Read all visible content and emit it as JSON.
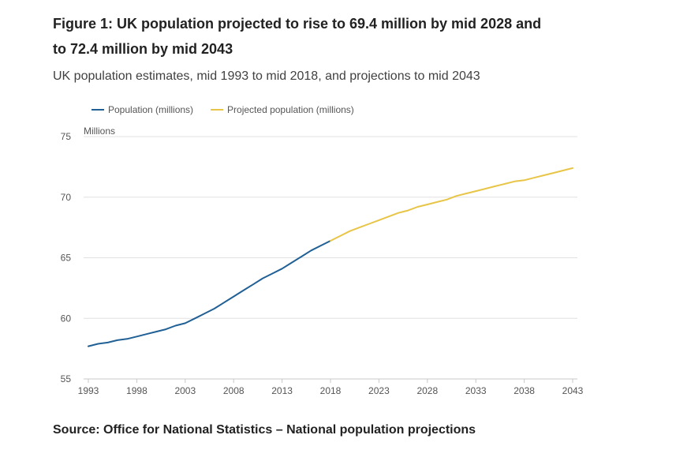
{
  "colors": {
    "population": "#206095",
    "projected": "#E8C547",
    "grid": "#e0e0e0",
    "axis": "#c8c8c8"
  },
  "header": {
    "title": "Figure 1: UK population projected to rise to 69.4 million by mid 2028 and to 72.4 million by mid 2043",
    "subtitle": "UK population estimates, mid 1993 to mid 2018, and projections to mid 2043"
  },
  "footer": {
    "source": "Source: Office for National Statistics – National population projections"
  },
  "chart_data": {
    "type": "line",
    "title": "Figure 1: UK population projected to rise to 69.4 million by mid 2028 and to 72.4 million by mid 2043",
    "subtitle": "UK population estimates, mid 1993 to mid 2018, and projections to mid 2043",
    "ylabel": "Millions",
    "xlabel": "",
    "xlim": [
      1993,
      2043
    ],
    "ylim": [
      55,
      75
    ],
    "xticks": [
      1993,
      1998,
      2003,
      2008,
      2013,
      2018,
      2023,
      2028,
      2033,
      2038,
      2043
    ],
    "yticks": [
      55,
      60,
      65,
      70,
      75
    ],
    "grid": true,
    "legend_position": "top-left",
    "series": [
      {
        "name": "Population (millions)",
        "color": "#206095",
        "x": [
          1993,
          1994,
          1995,
          1996,
          1997,
          1998,
          1999,
          2000,
          2001,
          2002,
          2003,
          2004,
          2005,
          2006,
          2007,
          2008,
          2009,
          2010,
          2011,
          2012,
          2013,
          2014,
          2015,
          2016,
          2017,
          2018
        ],
        "y": [
          57.7,
          57.9,
          58.0,
          58.2,
          58.3,
          58.5,
          58.7,
          58.9,
          59.1,
          59.4,
          59.6,
          60.0,
          60.4,
          60.8,
          61.3,
          61.8,
          62.3,
          62.8,
          63.3,
          63.7,
          64.1,
          64.6,
          65.1,
          65.6,
          66.0,
          66.4
        ]
      },
      {
        "name": "Projected population (millions)",
        "color": "#E8C547",
        "x": [
          2018,
          2019,
          2020,
          2021,
          2022,
          2023,
          2024,
          2025,
          2026,
          2027,
          2028,
          2029,
          2030,
          2031,
          2032,
          2033,
          2034,
          2035,
          2036,
          2037,
          2038,
          2039,
          2040,
          2041,
          2042,
          2043
        ],
        "y": [
          66.4,
          66.8,
          67.2,
          67.5,
          67.8,
          68.1,
          68.4,
          68.7,
          68.9,
          69.2,
          69.4,
          69.6,
          69.8,
          70.1,
          70.3,
          70.5,
          70.7,
          70.9,
          71.1,
          71.3,
          71.4,
          71.6,
          71.8,
          72.0,
          72.2,
          72.4
        ]
      }
    ]
  }
}
